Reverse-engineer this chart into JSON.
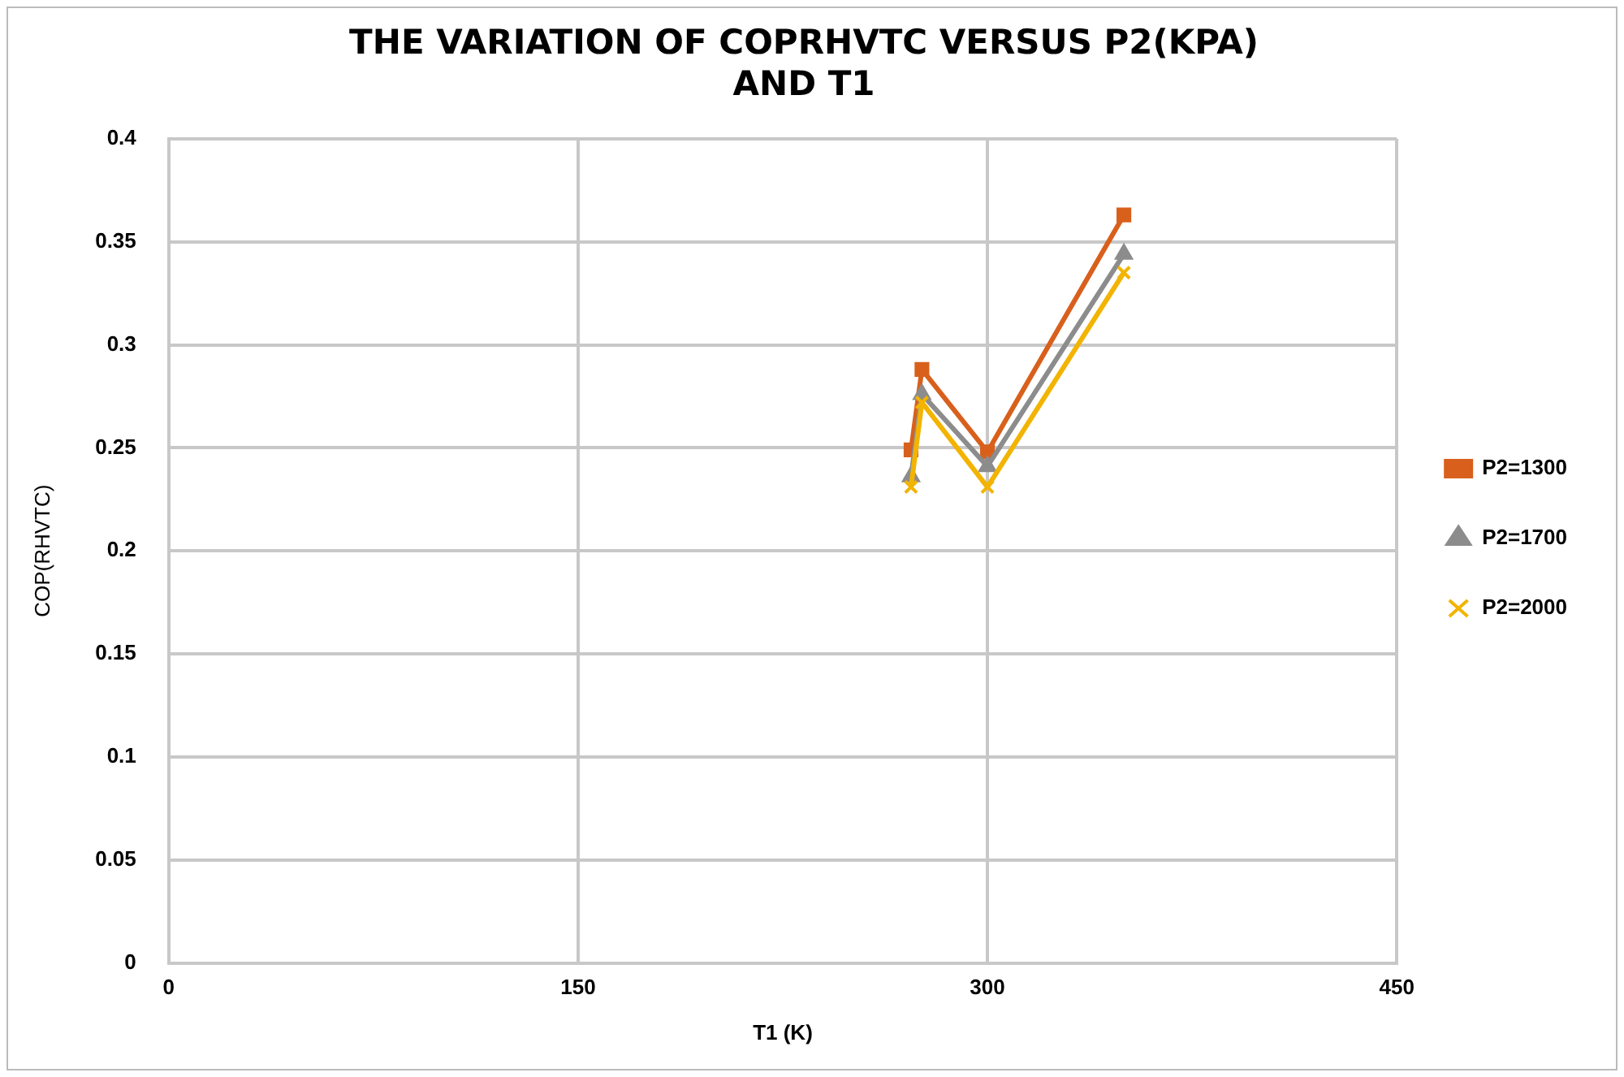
{
  "chart_data": {
    "type": "line",
    "title": [
      "THE VARIATION OF COPRHVTC VERSUS P2(KPA)",
      "AND T1"
    ],
    "xlabel": "T1 (K)",
    "ylabel": "COP(RHVTC)",
    "x": [
      272,
      276,
      300,
      350
    ],
    "series": [
      {
        "name": "P2=1300",
        "color": "#d8601c",
        "marker": "square",
        "values": [
          0.249,
          0.288,
          0.248,
          0.363
        ]
      },
      {
        "name": "P2=1700",
        "color": "#8c8c8c",
        "marker": "triangle",
        "values": [
          0.236,
          0.276,
          0.241,
          0.344
        ]
      },
      {
        "name": "P2=2000",
        "color": "#f2b400",
        "marker": "cross",
        "values": [
          0.231,
          0.272,
          0.231,
          0.335
        ]
      }
    ],
    "xlim": [
      0,
      450
    ],
    "xticks": [
      0,
      150,
      300,
      450
    ],
    "ylim": [
      0,
      0.4
    ],
    "yticks": [
      0,
      0.05,
      0.1,
      0.15,
      0.2,
      0.25,
      0.3,
      0.35,
      0.4
    ],
    "grid": true,
    "legend": "right",
    "line_style": "solid"
  }
}
